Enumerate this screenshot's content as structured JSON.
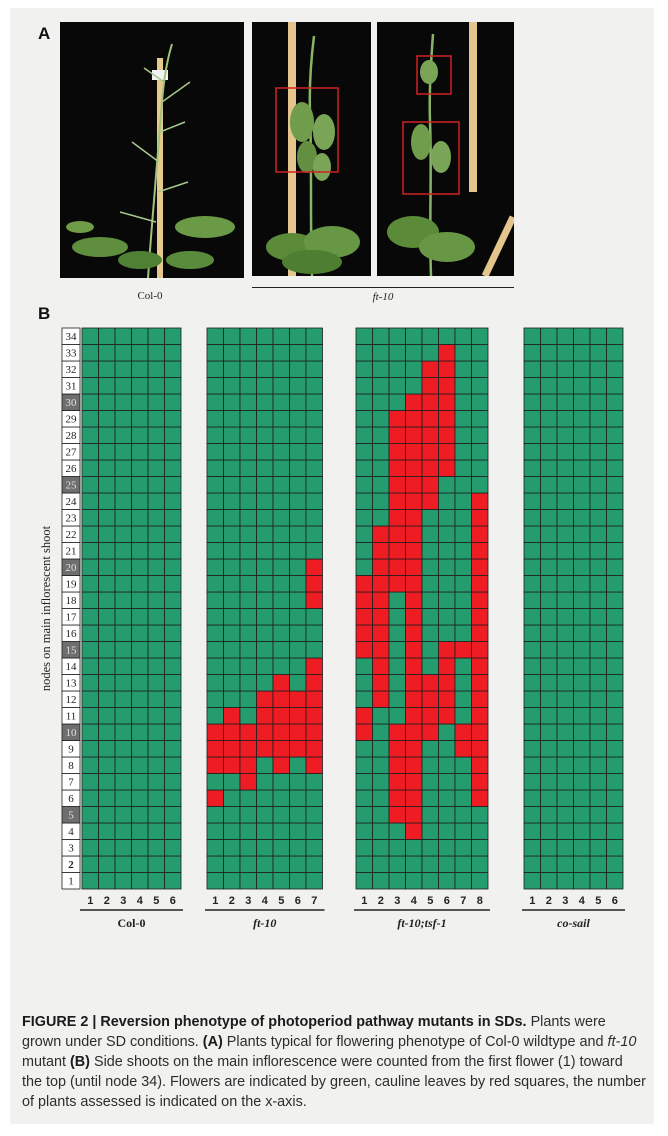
{
  "panel_a": {
    "label": "A",
    "caption_left": "Col-0",
    "caption_right": "ft-10"
  },
  "panel_b": {
    "label": "B"
  },
  "chart_data": {
    "type": "heatmap",
    "ylabel": "nodes on main inflorescent shoot",
    "y_ticks": [
      "1",
      "2",
      "3",
      "4",
      "5",
      "6",
      "7",
      "8",
      "9",
      "10",
      "11",
      "12",
      "13",
      "14",
      "15",
      "16",
      "17",
      "18",
      "19",
      "20",
      "21",
      "22",
      "23",
      "24",
      "25",
      "26",
      "27",
      "28",
      "29",
      "30",
      "31",
      "32",
      "33",
      "34"
    ],
    "highlighted_ticks": [
      "5",
      "10",
      "15",
      "20",
      "25",
      "30"
    ],
    "bold_ticks": [
      "2"
    ],
    "legend": {
      "green": "flower",
      "red": "cauline leaf"
    },
    "colors": {
      "flower": "#249c6e",
      "cauline_leaf": "#ee1c23",
      "grid": "#1e1e1e"
    },
    "groups": [
      {
        "label": "Col-0",
        "plants": [
          1,
          2,
          3,
          4,
          5,
          6
        ],
        "red_nodes": [
          [],
          [],
          [],
          [],
          [],
          []
        ]
      },
      {
        "label": "ft-10",
        "plants": [
          1,
          2,
          3,
          4,
          5,
          6,
          7
        ],
        "red_nodes": [
          [
            6,
            8,
            9,
            10
          ],
          [
            8,
            9,
            10,
            11
          ],
          [
            7,
            8,
            9,
            10
          ],
          [
            9,
            10,
            11,
            12
          ],
          [
            8,
            9,
            10,
            11,
            12,
            13
          ],
          [
            9,
            10,
            11,
            12
          ],
          [
            8,
            9,
            10,
            11,
            12,
            13,
            14,
            18,
            19,
            20
          ]
        ]
      },
      {
        "label": "ft-10;tsf-1",
        "plants": [
          1,
          2,
          3,
          4,
          5,
          6,
          7,
          8
        ],
        "red_nodes": [
          [
            10,
            11,
            15,
            16,
            17,
            18,
            19
          ],
          [
            12,
            13,
            14,
            15,
            16,
            17,
            18,
            19,
            20,
            21,
            22
          ],
          [
            5,
            6,
            7,
            8,
            9,
            10,
            19,
            20,
            21,
            22,
            23,
            24,
            25,
            26,
            27,
            28,
            29
          ],
          [
            4,
            5,
            6,
            7,
            8,
            9,
            10,
            11,
            12,
            13,
            14,
            15,
            16,
            17,
            18,
            19,
            20,
            21,
            22,
            23,
            24,
            25,
            26,
            27,
            28,
            29,
            30
          ],
          [
            10,
            11,
            12,
            13,
            24,
            25,
            26,
            27,
            28,
            29,
            30,
            31,
            32
          ],
          [
            11,
            12,
            13,
            14,
            15,
            26,
            27,
            28,
            29,
            30,
            31,
            32,
            33
          ],
          [
            9,
            10,
            15
          ],
          [
            6,
            7,
            8,
            9,
            10,
            11,
            12,
            13,
            14,
            15,
            16,
            17,
            18,
            19,
            20,
            21,
            22,
            23,
            24
          ]
        ]
      },
      {
        "label": "co-sail",
        "plants": [
          1,
          2,
          3,
          4,
          5,
          6
        ],
        "red_nodes": [
          [],
          [],
          [],
          [],
          [],
          []
        ]
      }
    ]
  },
  "caption": {
    "title": "FIGURE 2 | Reversion phenotype of photoperiod pathway mutants in SDs.",
    "p1": "Plants were grown under SD conditions.",
    "a_label": "(A)",
    "a_text": "Plants typical for flowering phenotype of Col-0 wildtype and",
    "a_italic": "ft-10",
    "a_tail": "mutant",
    "b_label": "(B)",
    "b_text": "Side shoots on the main inflorescence were counted from the first flower (1) toward the top (until node 34). Flowers are indicated by green, cauline leaves by red squares, the number of plants assessed is indicated on the x-axis."
  }
}
